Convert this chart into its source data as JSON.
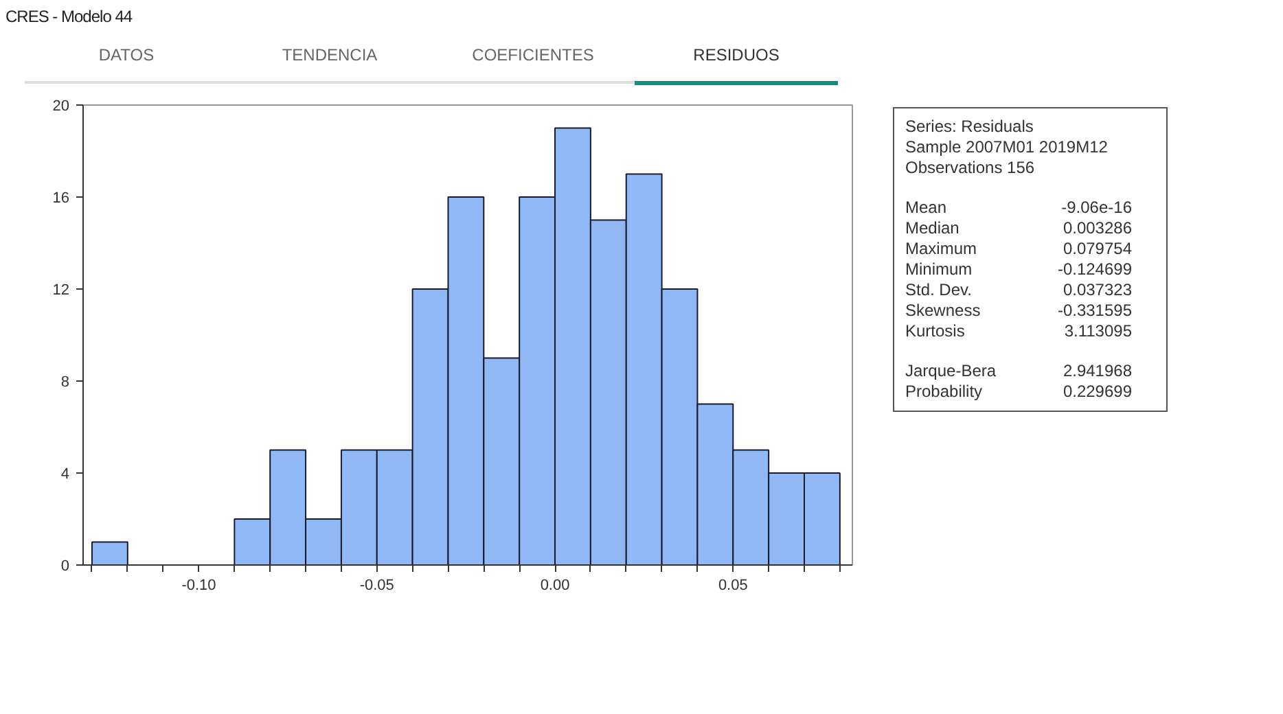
{
  "chart_data": {
    "type": "histogram",
    "title": "CRES - Modelo 44",
    "bins": [
      -0.13,
      -0.12,
      -0.11,
      -0.1,
      -0.09,
      -0.08,
      -0.07,
      -0.06,
      -0.05,
      -0.04,
      -0.03,
      -0.02,
      -0.01,
      0.0,
      0.01,
      0.02,
      0.03,
      0.04,
      0.05,
      0.06,
      0.07,
      0.08
    ],
    "values": [
      1,
      0,
      0,
      0,
      2,
      5,
      2,
      5,
      5,
      12,
      16,
      9,
      16,
      19,
      15,
      17,
      12,
      7,
      5,
      4,
      4
    ],
    "color": "#8fb8f5",
    "xlim": [
      -0.1325,
      0.0835
    ],
    "ylim": [
      0,
      20
    ],
    "yticks": [
      0,
      4,
      8,
      12,
      16,
      20
    ],
    "xticks": [
      {
        "value": -0.13,
        "label": null
      },
      {
        "value": -0.12,
        "label": null
      },
      {
        "value": -0.11,
        "label": null
      },
      {
        "value": -0.1,
        "label": "-0.10"
      },
      {
        "value": -0.09,
        "label": null
      },
      {
        "value": -0.08,
        "label": null
      },
      {
        "value": -0.07,
        "label": null
      },
      {
        "value": -0.06,
        "label": null
      },
      {
        "value": -0.05,
        "label": "-0.05"
      },
      {
        "value": -0.04,
        "label": null
      },
      {
        "value": -0.03,
        "label": null
      },
      {
        "value": -0.02,
        "label": null
      },
      {
        "value": -0.01,
        "label": null
      },
      {
        "value": 0.0,
        "label": "0.00"
      },
      {
        "value": 0.01,
        "label": null
      },
      {
        "value": 0.02,
        "label": null
      },
      {
        "value": 0.03,
        "label": null
      },
      {
        "value": 0.04,
        "label": null
      },
      {
        "value": 0.05,
        "label": "0.05"
      },
      {
        "value": 0.06,
        "label": null
      },
      {
        "value": 0.07,
        "label": null
      },
      {
        "value": 0.08,
        "label": null
      }
    ],
    "grid": false,
    "annotations": [
      "DATOS",
      "TENDENCIA",
      "COEFICIENTES",
      "RESIDUOS",
      "Series: Residuals",
      "Sample 2007M01 2019M12",
      "Observations 156",
      "Mean",
      "-9.06e-16",
      "Median",
      "0.003286",
      "Maximum",
      "0.079754",
      "Minimum",
      "-0.124699",
      "Std. Dev.",
      "0.037323",
      "Skewness",
      "-0.331595",
      "Kurtosis",
      "3.113095",
      "Jarque-Bera",
      "2.941968",
      "Probability",
      "0.229699"
    ]
  }
}
